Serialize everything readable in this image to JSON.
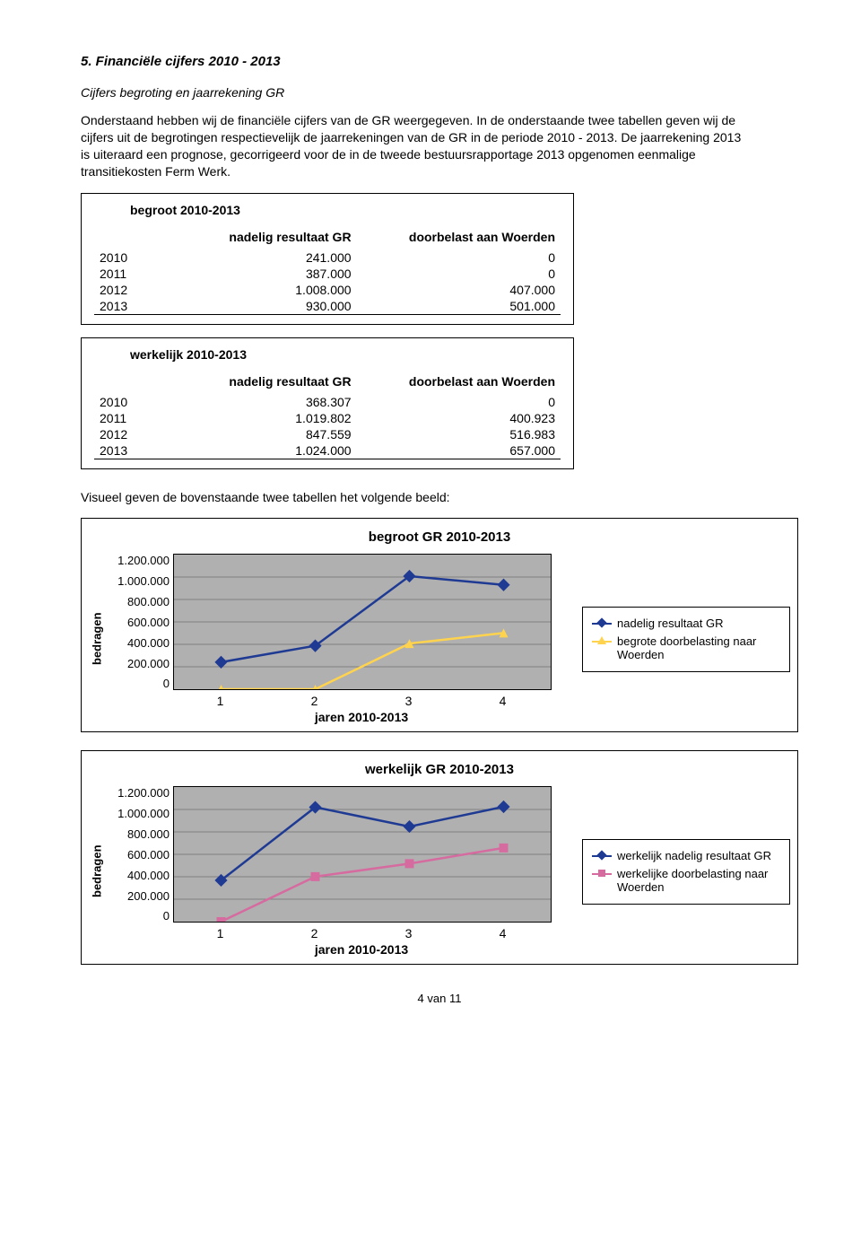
{
  "heading": "5.   Financiële cijfers 2010 - 2013",
  "subheading": "Cijfers begroting en jaarrekening GR",
  "para1": "Onderstaand hebben wij de financiële cijfers van de GR weergegeven. In de onderstaande twee tabellen geven wij de cijfers uit de begrotingen respectievelijk de jaarrekeningen van de GR in de periode 2010 - 2013. De jaarrekening 2013 is uiteraard een prognose, gecorrigeerd voor de in de tweede bestuursrapportage 2013 opgenomen eenmalige transitiekosten Ferm Werk.",
  "table1": {
    "title": "begroot 2010-2013",
    "col_a": "nadelig resultaat GR",
    "col_b": "doorbelast aan Woerden",
    "rows": [
      {
        "year": "2010",
        "a": "241.000",
        "b": "0"
      },
      {
        "year": "2011",
        "a": "387.000",
        "b": "0"
      },
      {
        "year": "2012",
        "a": "1.008.000",
        "b": "407.000"
      },
      {
        "year": "2013",
        "a": "930.000",
        "b": "501.000"
      }
    ]
  },
  "table2": {
    "title": "werkelijk 2010-2013",
    "col_a": "nadelig resultaat GR",
    "col_b": "doorbelast aan Woerden",
    "rows": [
      {
        "year": "2010",
        "a": "368.307",
        "b": "0"
      },
      {
        "year": "2011",
        "a": "1.019.802",
        "b": "400.923"
      },
      {
        "year": "2012",
        "a": "847.559",
        "b": "516.983"
      },
      {
        "year": "2013",
        "a": "1.024.000",
        "b": "657.000"
      }
    ]
  },
  "para2": "Visueel geven de bovenstaande twee tabellen het volgende beeld:",
  "chart1": {
    "title": "begroot GR 2010-2013",
    "y_label": "bedragen",
    "y_ticks": [
      "1.200.000",
      "1.000.000",
      "800.000",
      "600.000",
      "400.000",
      "200.000",
      "0"
    ],
    "y_max": 1200000,
    "x_ticks": [
      "1",
      "2",
      "3",
      "4"
    ],
    "x_positions_pct": [
      12.5,
      37.5,
      62.5,
      87.5
    ],
    "x_label": "jaren 2010-2013",
    "plot_bg": "#b0b0b0",
    "grid_color": "#808080",
    "series": [
      {
        "label": "nadelig resultaat GR",
        "color": "#1f3a93",
        "marker": "diamond",
        "values": [
          241000,
          387000,
          1008000,
          930000
        ]
      },
      {
        "label": "begrote doorbelasting naar Woerden",
        "color": "#ffd34e",
        "marker": "triangle",
        "values": [
          0,
          0,
          407000,
          501000
        ]
      }
    ]
  },
  "chart2": {
    "title": "werkelijk GR 2010-2013",
    "y_label": "bedragen",
    "y_ticks": [
      "1.200.000",
      "1.000.000",
      "800.000",
      "600.000",
      "400.000",
      "200.000",
      "0"
    ],
    "y_max": 1200000,
    "x_ticks": [
      "1",
      "2",
      "3",
      "4"
    ],
    "x_positions_pct": [
      12.5,
      37.5,
      62.5,
      87.5
    ],
    "x_label": "jaren 2010-2013",
    "plot_bg": "#b0b0b0",
    "grid_color": "#808080",
    "series": [
      {
        "label": "werkelijk nadelig resultaat GR",
        "color": "#1f3a93",
        "marker": "diamond",
        "values": [
          368307,
          1019802,
          847559,
          1024000
        ]
      },
      {
        "label": "werkelijke doorbelasting naar Woerden",
        "color": "#d66ba0",
        "marker": "square",
        "values": [
          0,
          400923,
          516983,
          657000
        ]
      }
    ]
  },
  "footer": "4 van 11"
}
